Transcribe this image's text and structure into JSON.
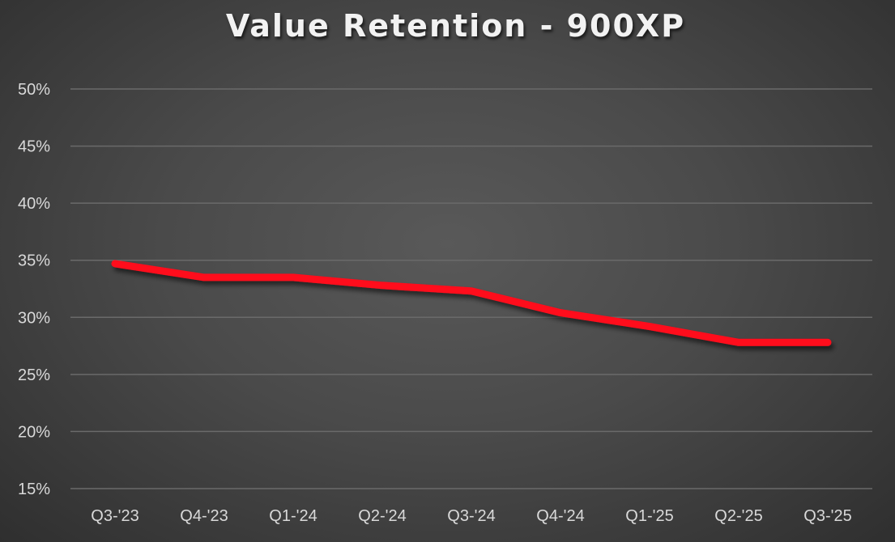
{
  "chart_data": {
    "type": "line",
    "title": "Value Retention - 900XP",
    "xlabel": "",
    "ylabel": "",
    "ylim": [
      0.15,
      0.5
    ],
    "yticks": [
      "15%",
      "20%",
      "25%",
      "30%",
      "35%",
      "40%",
      "45%",
      "50%"
    ],
    "grid": true,
    "legend": null,
    "categories": [
      "Q3-'23",
      "Q4-'23",
      "Q1-'24",
      "Q2-'24",
      "Q3-'24",
      "Q4-'24",
      "Q1-'25",
      "Q2-'25",
      "Q3-'25"
    ],
    "series": [
      {
        "name": "900XP",
        "color": "#ff0a1a",
        "values": [
          0.347,
          0.335,
          0.335,
          0.328,
          0.323,
          0.304,
          0.292,
          0.278,
          0.278
        ]
      }
    ]
  },
  "colors": {
    "line": "#ff0a1a",
    "gridline": "#6a6a6a",
    "text": "#d9d9d9",
    "title": "#f2f2f2"
  }
}
